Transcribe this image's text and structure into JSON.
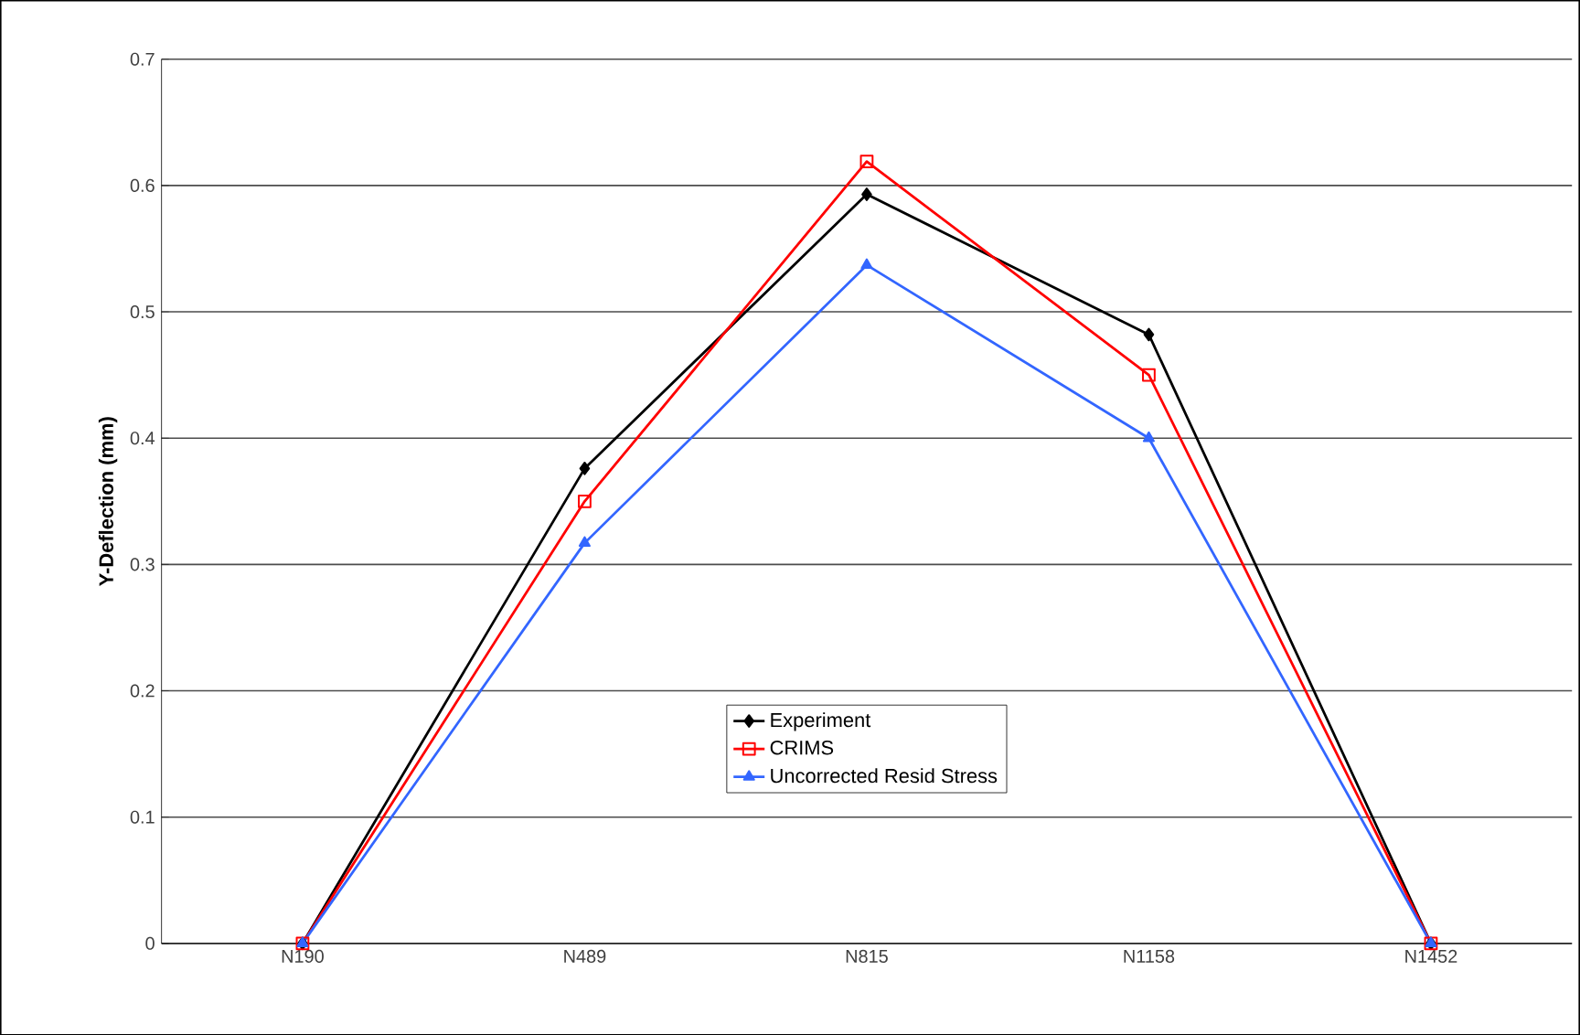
{
  "chart_data": {
    "type": "line",
    "ylabel": "Y-Deflection (mm)",
    "categories": [
      "N190",
      "N489",
      "N815",
      "N1158",
      "N1452"
    ],
    "series": [
      {
        "name": "Experiment",
        "color": "#000000",
        "marker": "diamond",
        "values": [
          0,
          0.376,
          0.593,
          0.482,
          0
        ]
      },
      {
        "name": "CRIMS",
        "color": "#ff0000",
        "marker": "square",
        "values": [
          0,
          0.35,
          0.619,
          0.45,
          0
        ]
      },
      {
        "name": "Uncorrected Resid Stress",
        "color": "#3366ff",
        "marker": "triangle",
        "values": [
          0,
          0.317,
          0.537,
          0.4,
          0
        ]
      }
    ],
    "ylim": [
      0,
      0.7
    ],
    "yticks": [
      0,
      0.1,
      0.2,
      0.3,
      0.4,
      0.5,
      0.6,
      0.7
    ],
    "grid": "y",
    "legend": "bottom"
  }
}
